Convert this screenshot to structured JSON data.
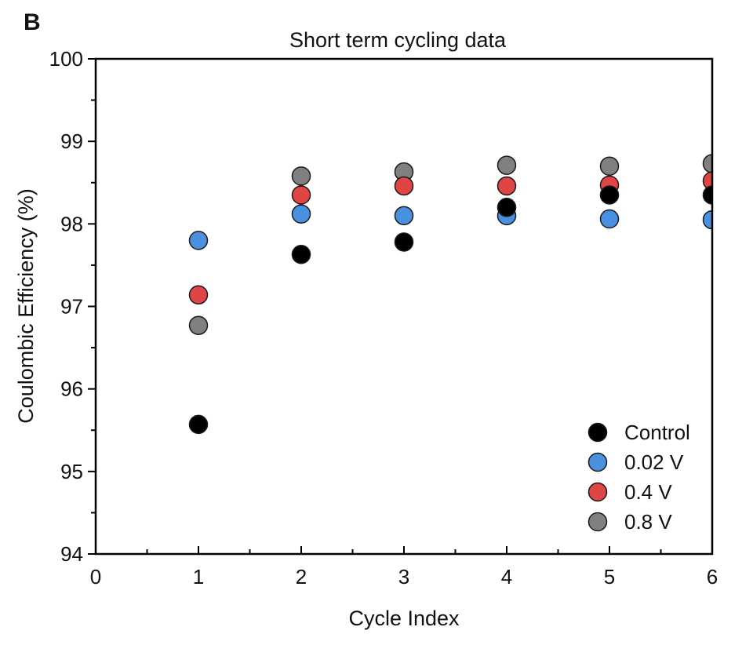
{
  "panel_label": "B",
  "chart_data": {
    "type": "scatter",
    "title": "Short term cycling data",
    "xlabel": "Cycle Index",
    "ylabel": "Coulombic Efficiency (%)",
    "xlim": [
      0,
      6
    ],
    "ylim": [
      94,
      100
    ],
    "xticks": [
      0,
      1,
      2,
      3,
      4,
      5,
      6
    ],
    "yticks": [
      94,
      95,
      96,
      97,
      98,
      99,
      100
    ],
    "grid": false,
    "legend_position": "bottom-right",
    "series": [
      {
        "name": "Control",
        "color": "#000000",
        "x": [
          1,
          2,
          3,
          4,
          5,
          6
        ],
        "y": [
          95.57,
          97.63,
          97.78,
          98.2,
          98.35,
          98.35
        ]
      },
      {
        "name": "0.02 V",
        "color": "#4a8fe0",
        "x": [
          1,
          2,
          3,
          4,
          5,
          6
        ],
        "y": [
          97.8,
          98.12,
          98.1,
          98.1,
          98.06,
          98.05
        ]
      },
      {
        "name": "0.4 V",
        "color": "#e04545",
        "x": [
          1,
          2,
          3,
          4,
          5,
          6
        ],
        "y": [
          97.14,
          98.35,
          98.46,
          98.46,
          98.47,
          98.52
        ]
      },
      {
        "name": "0.8 V",
        "color": "#808080",
        "x": [
          1,
          2,
          3,
          4,
          5,
          6
        ],
        "y": [
          96.77,
          98.58,
          98.63,
          98.71,
          98.7,
          98.73
        ]
      }
    ]
  }
}
